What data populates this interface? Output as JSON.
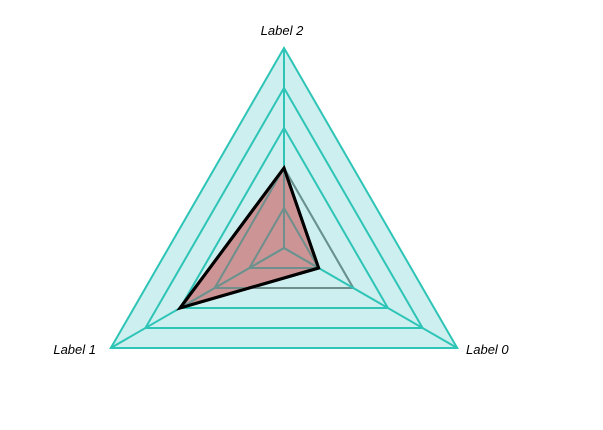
{
  "chart_data": {
    "type": "radar",
    "title": "",
    "axes": [
      "Label 0",
      "Label 1",
      "Label 2"
    ],
    "levels": 5,
    "range": [
      0,
      5
    ],
    "series": [
      {
        "values": [
          1,
          3,
          2
        ]
      }
    ],
    "grid_color": "#2ec4b6",
    "grid_fill": "#cdeff0",
    "spoke_color": "#6e8f8c",
    "series_fill": "#cc8a8a",
    "series_stroke": "#000000"
  }
}
